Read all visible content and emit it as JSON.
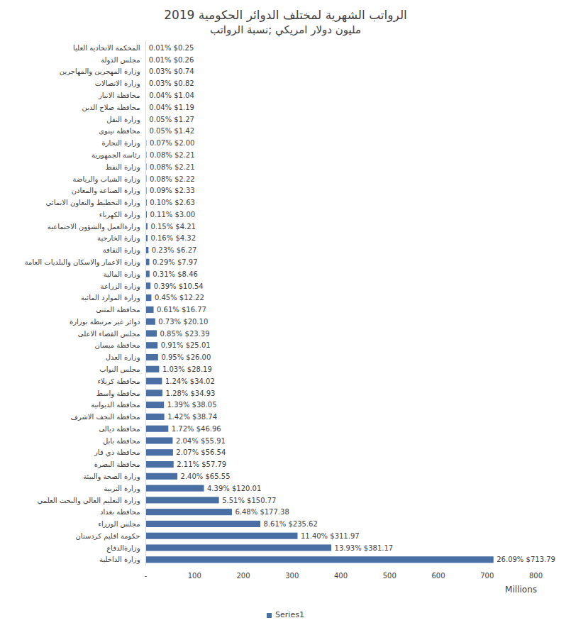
{
  "chart_data": {
    "type": "bar",
    "title": "الرواتب الشهرية لمختلف الدوائر الحكومية 2019",
    "subtitle": "مليون دولار امريكي ;نسبة الرواتب",
    "x_label": "Millions",
    "orientation": "horizontal",
    "data_labels": true,
    "grid": false,
    "legend": "bottom",
    "xlim": [
      0,
      800
    ],
    "xticks": [
      {
        "value": 0,
        "label": "-"
      },
      100,
      200,
      300,
      400,
      500,
      600,
      700,
      800
    ],
    "categories": [
      "المحكمة الاتحادية العليا",
      "مجلس الدولة",
      "وزارة المهجرين والمهاجرين",
      "وزارة الاتصالات",
      "محافظة الانبار",
      "محافظة صلاح الدين",
      "وزارة النقل",
      "محافظة نينوى",
      "وزارة التجارة",
      "رئاسة الجمهورية",
      "وزارة النفط",
      "وزارة الشباب والرياضة",
      "وزارة الصناعة والمعادن",
      "وزارة التخطيط والتعاون الانمائي",
      "وزارة الكهرباء",
      "وزارةالعمل والشؤون الاجتماعية",
      "وزارة الخارجية",
      "وزارة الثقافة",
      "وزارة الاعمار والاسكان والبلديات العامة",
      "وزارة المالية",
      "وزارة الزراعة",
      "وزارة الموارد المائية",
      "محافظة المثنى",
      "دوائر غير مرتبطة بوزارة",
      "مجلس القضاء الاعلى",
      "محافظة ميسان",
      "وزارة العدل",
      "مجلس النواب",
      "محافظة كربلاء",
      "محافظة واسط",
      "محافظة الديوانية",
      "محافظة النجف الاشرف",
      "محافظة ديالى",
      "محافظة بابل",
      "محافظة ذي قار",
      "محافظة البصرة",
      "وزارة الصحة والبيئة",
      "وزارة التربية",
      "وزارة التعليم العالي والبحث العلمي",
      "محافظة بغداد",
      "مجلس الوزراء",
      "حكومة اقليم كردستان",
      "وزارةالدفاع",
      "وزارة الداخلية"
    ],
    "series": [
      {
        "name": "Series1",
        "color": "#4a6fa5",
        "values": [
          0.25,
          0.26,
          0.74,
          0.82,
          1.04,
          1.19,
          1.27,
          1.42,
          2.0,
          2.21,
          2.21,
          2.22,
          2.33,
          2.63,
          3.0,
          4.21,
          4.32,
          6.27,
          7.97,
          8.46,
          10.54,
          12.22,
          16.77,
          20.1,
          23.39,
          25.01,
          26.0,
          28.19,
          34.02,
          34.93,
          38.05,
          38.74,
          46.96,
          55.91,
          56.54,
          57.79,
          65.55,
          120.01,
          150.77,
          177.38,
          235.62,
          311.97,
          381.17,
          713.79
        ],
        "value_labels": [
          "0.01% $0.25",
          "0.01% $0.26",
          "0.03% $0.74",
          "0.03% $0.82",
          "0.04% $1.04",
          "0.04% $1.19",
          "0.05% $1.27",
          "0.05% $1.42",
          "0.07% $2.00",
          "0.08% $2.21",
          "0.08% $2.21",
          "0.08% $2.22",
          "0.09% $2.33",
          "0.10% $2.63",
          "0.11% $3.00",
          "0.15% $4.21",
          "0.16% $4.32",
          "0.23% $6.27",
          "0.29% $7.97",
          "0.31% $8.46",
          "0.39% $10.54",
          "0.45% $12.22",
          "0.61% $16.77",
          "0.73% $20.10",
          "0.85% $23.39",
          "0.91% $25.01",
          "0.95% $26.00",
          "1.03% $28.19",
          "1.24% $34.02",
          "1.28% $34.93",
          "1.39% $38.05",
          "1.42% $38.74",
          "1.72% $46.96",
          "2.04% $55.91",
          "2.07% $56.54",
          "2.11% $57.79",
          "2.40% $65.55",
          "4.39% $120.01",
          "5.51% $150.77",
          "6.48% $177.38",
          "8.61% $235.62",
          "11.40% $311.97",
          "13.93% $381.17",
          "26.09% $713.79"
        ]
      }
    ]
  }
}
